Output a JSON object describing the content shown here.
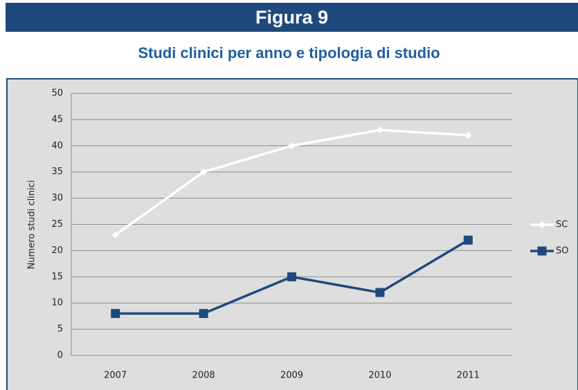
{
  "figure_label": "Figura 9",
  "chart_data": {
    "type": "line",
    "title": "Studi clinici per anno e tipologia di studio",
    "y_label": "Numero studi clinici",
    "categories": [
      "2007",
      "2008",
      "2009",
      "2010",
      "2011"
    ],
    "series": [
      {
        "name": "SC",
        "color": "#ffffff",
        "marker": "diamond",
        "values": [
          23,
          35,
          40,
          43,
          42
        ]
      },
      {
        "name": "SO",
        "color": "#1f497d",
        "marker": "square",
        "values": [
          8,
          8,
          15,
          12,
          22
        ]
      }
    ],
    "ylim": [
      0,
      50
    ],
    "yticks": [
      0,
      5,
      10,
      15,
      20,
      25,
      30,
      35,
      40,
      45,
      50
    ],
    "grid": true,
    "legend": "right"
  }
}
